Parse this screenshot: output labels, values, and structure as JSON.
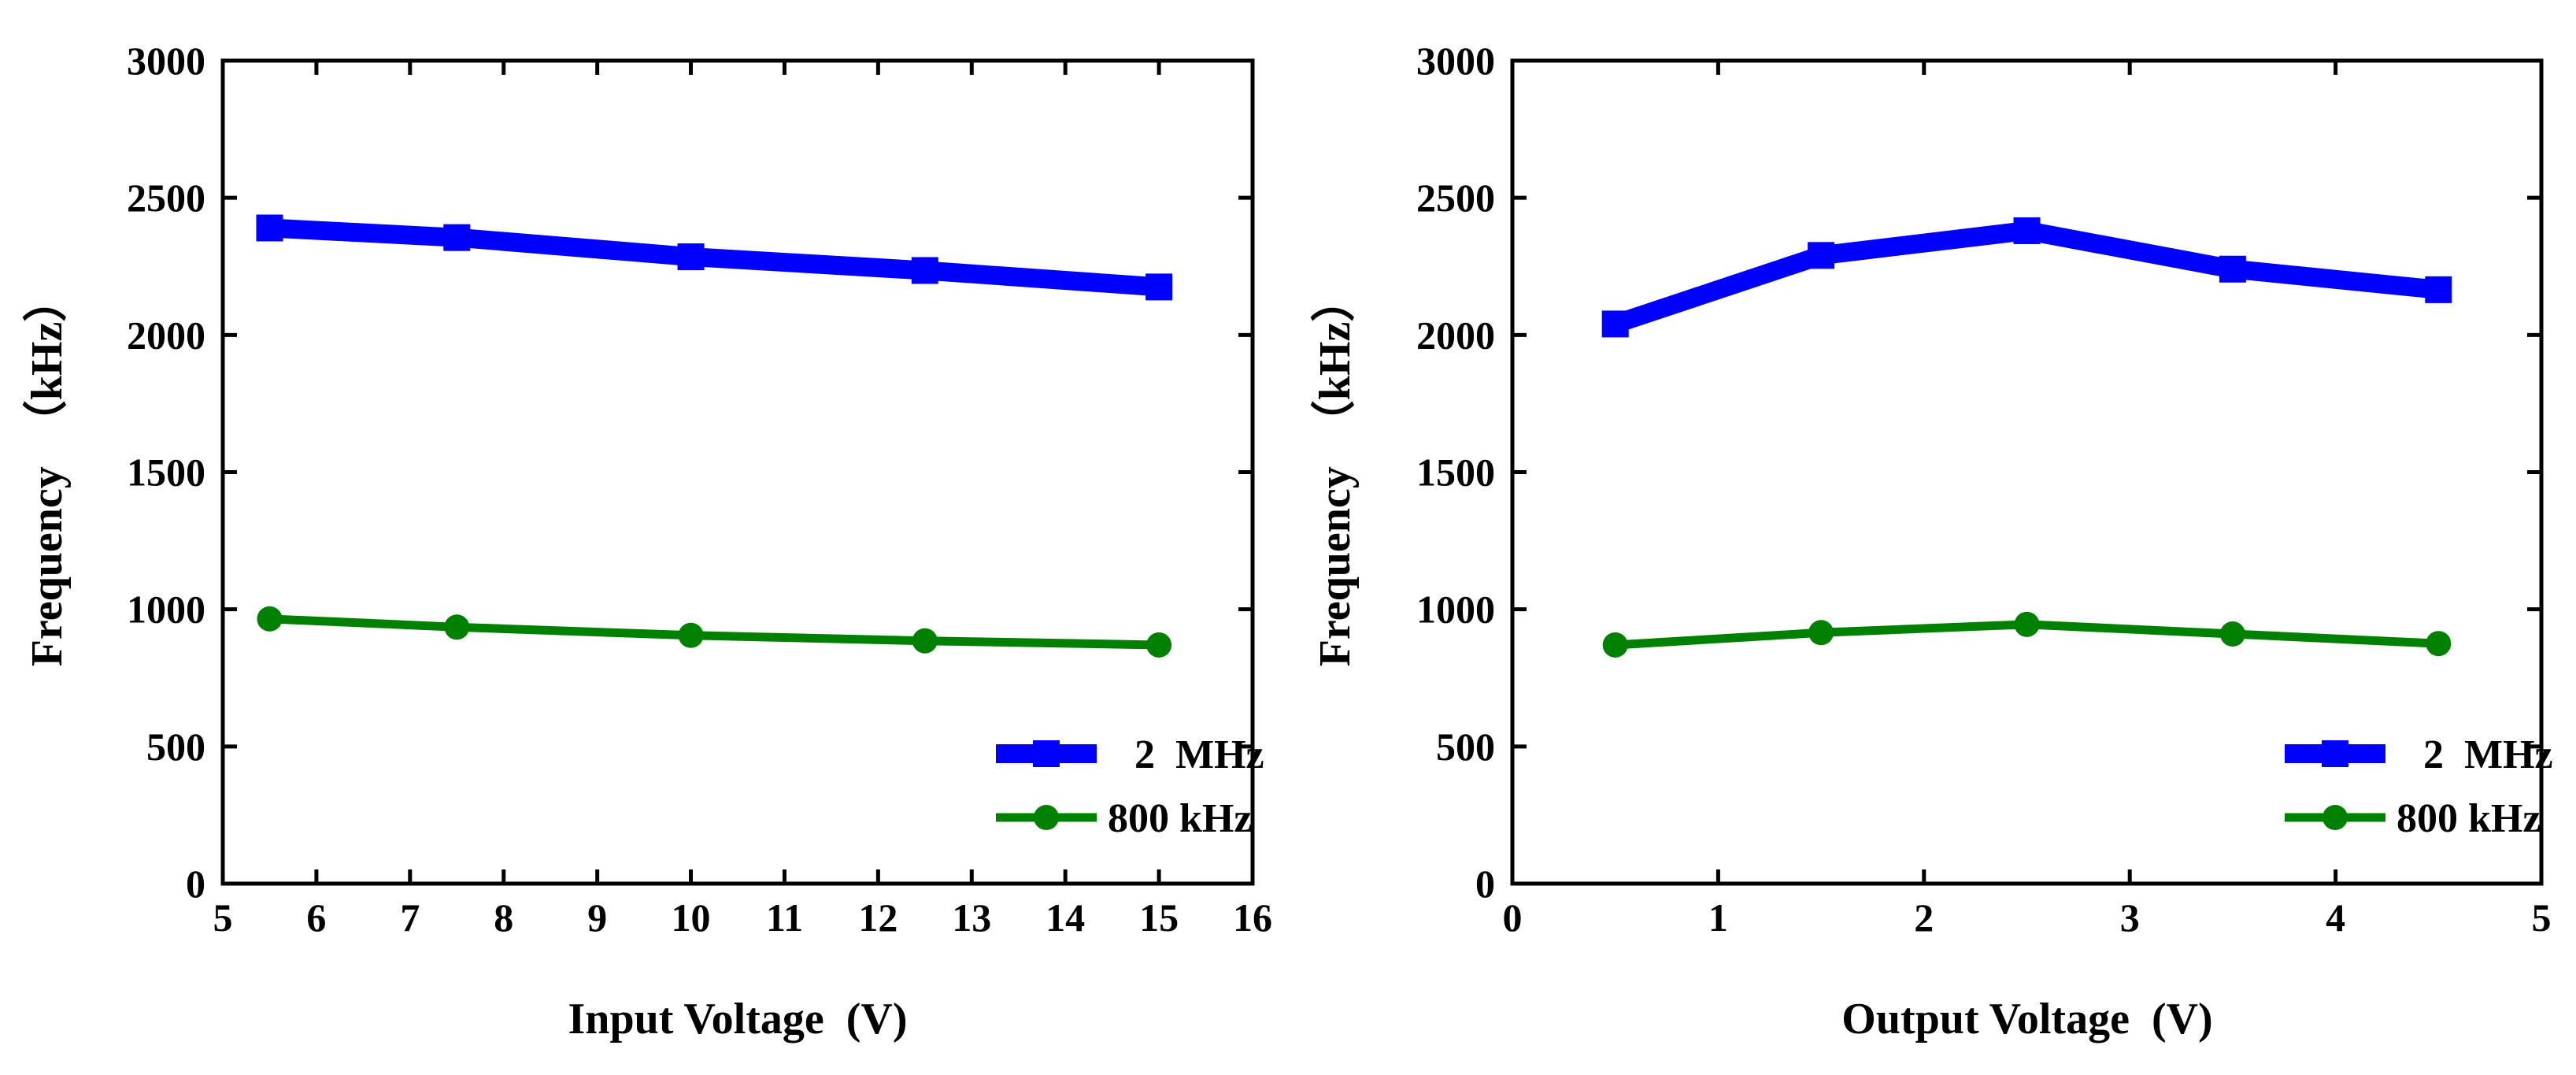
{
  "chart_data": [
    {
      "type": "line",
      "title": "",
      "xlabel": "Input Voltage  (V)",
      "ylabel": "Frequency  （kHz）",
      "xlim": [
        5,
        16
      ],
      "ylim": [
        0,
        3000
      ],
      "xticks": [
        "5",
        "6",
        "7",
        "8",
        "9",
        "10",
        "11",
        "12",
        "13",
        "14",
        "15",
        "16"
      ],
      "yticks": [
        "0",
        "500",
        "1000",
        "1500",
        "2000",
        "2500",
        "3000"
      ],
      "x": [
        5.5,
        7.5,
        10,
        12.5,
        15
      ],
      "series": [
        {
          "name": "2  MHz",
          "values": [
            2390,
            2355,
            2285,
            2235,
            2175
          ],
          "color": "#0000FF",
          "marker": "square"
        },
        {
          "name": "800 kHz",
          "values": [
            965,
            935,
            905,
            885,
            870
          ],
          "color": "#008000",
          "marker": "circle"
        }
      ],
      "legend": "bottom-right"
    },
    {
      "type": "line",
      "title": "",
      "xlabel": "Output Voltage  (V)",
      "ylabel": "Frequency  （kHz）",
      "xlim": [
        0,
        5
      ],
      "ylim": [
        0,
        3000
      ],
      "xticks": [
        "0",
        "1",
        "2",
        "3",
        "4",
        "5"
      ],
      "yticks": [
        "0",
        "500",
        "1000",
        "1500",
        "2000",
        "2500",
        "3000"
      ],
      "x": [
        0.5,
        1.5,
        2.5,
        3.5,
        4.5
      ],
      "series": [
        {
          "name": "2  MHz",
          "values": [
            2040,
            2290,
            2380,
            2240,
            2165
          ],
          "color": "#0000FF",
          "marker": "square"
        },
        {
          "name": "800 kHz",
          "values": [
            870,
            915,
            945,
            910,
            875
          ],
          "color": "#008000",
          "marker": "circle"
        }
      ],
      "legend": "bottom-right"
    }
  ]
}
